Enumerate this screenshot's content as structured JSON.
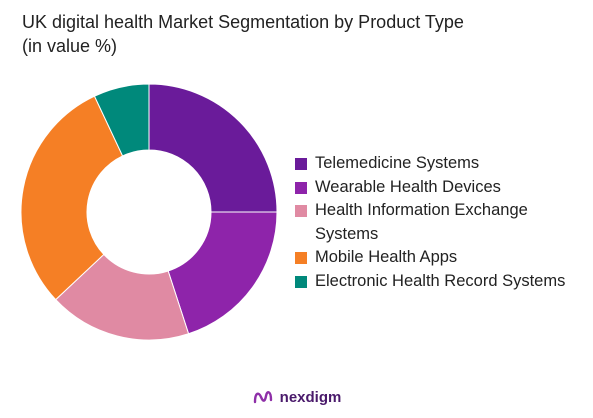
{
  "chart_data": {
    "type": "pie",
    "donut": true,
    "title_lines": [
      "UK digital health Market Segmentation by Product Type",
      "(in value %)"
    ],
    "series": [
      {
        "name": "Telemedicine Systems",
        "value": 25,
        "color": "#6a1b9a"
      },
      {
        "name": "Wearable Health Devices",
        "value": 20,
        "color": "#8e24aa"
      },
      {
        "name": "Health Information Exchange Systems",
        "value": 18,
        "color": "#e08aa3"
      },
      {
        "name": "Mobile Health Apps",
        "value": 30,
        "color": "#f57f25"
      },
      {
        "name": "Electronic Health Record Systems",
        "value": 7,
        "color": "#00897b"
      }
    ],
    "legend_position": "right"
  },
  "footer": {
    "brand": "nexdigm",
    "logo_icon": "nexdigm-logo-icon"
  }
}
